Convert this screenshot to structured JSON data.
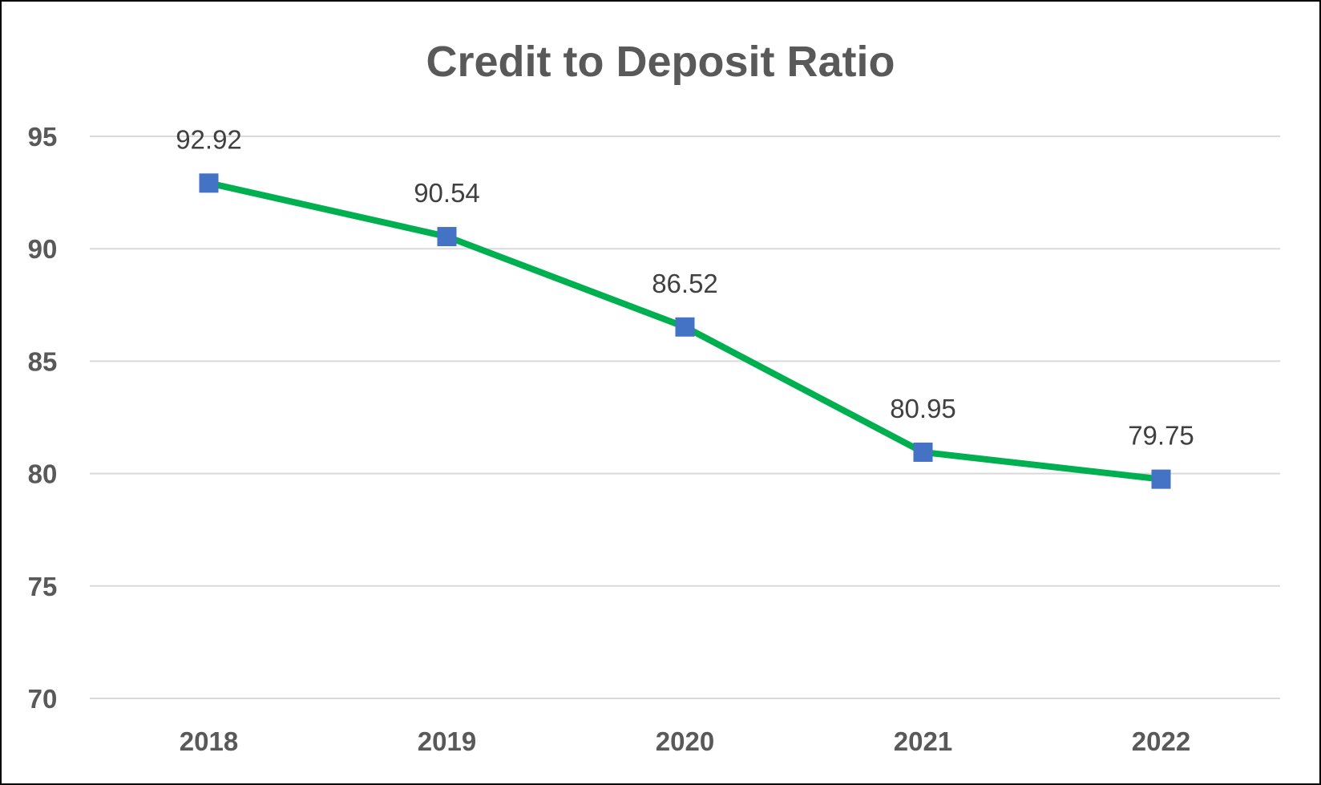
{
  "chart_data": {
    "type": "line",
    "title": "Credit to Deposit Ratio",
    "xlabel": "",
    "ylabel": "",
    "categories": [
      "2018",
      "2019",
      "2020",
      "2021",
      "2022"
    ],
    "series": [
      {
        "values": [
          92.92,
          90.54,
          86.52,
          80.95,
          79.75
        ]
      }
    ],
    "data_labels": [
      "92.92",
      "90.54",
      "86.52",
      "80.95",
      "79.75"
    ],
    "ylim": [
      70,
      95
    ],
    "yticks": [
      70,
      75,
      80,
      85,
      90,
      95
    ],
    "ytick_labels": [
      "70",
      "75",
      "80",
      "85",
      "90",
      "95"
    ],
    "grid": true,
    "legend": "none",
    "colors": {
      "line": "#00b050",
      "marker": "#4472c4",
      "grid": "#d9d9d9",
      "text": "#595959"
    }
  }
}
